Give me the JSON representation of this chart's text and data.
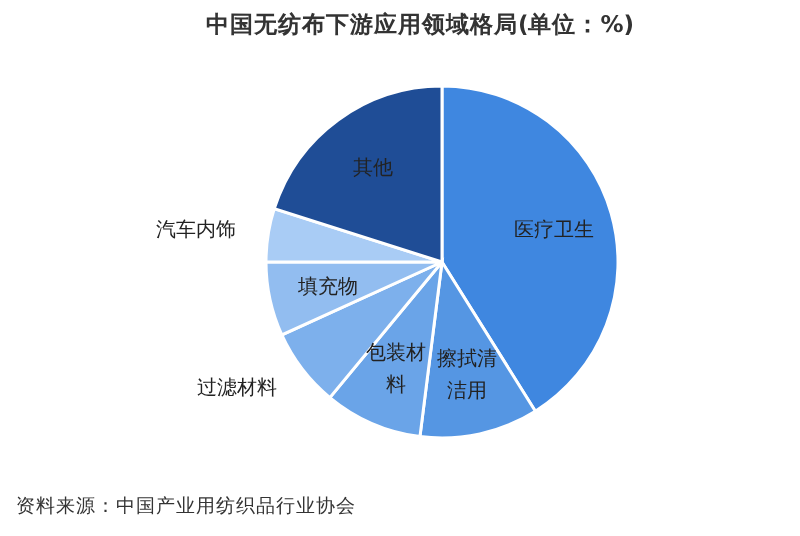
{
  "chart_data": {
    "type": "pie",
    "title": "中国无纺布下游应用领域格局(单位：%)",
    "categories": [
      "医疗卫生",
      "擦拭清洁用",
      "包装材料",
      "过滤材料",
      "填充物",
      "汽车内饰",
      "其他"
    ],
    "values": [
      41.1,
      10.9,
      9.0,
      7.2,
      6.8,
      4.9,
      20.1
    ],
    "colors": [
      "#3f87e0",
      "#5596e3",
      "#6aa4e8",
      "#7db0ec",
      "#92bdf0",
      "#a9ccf5",
      "#1f4d96"
    ],
    "annotations": [
      "资料来源：中国产业用纺织品行业协会"
    ]
  }
}
